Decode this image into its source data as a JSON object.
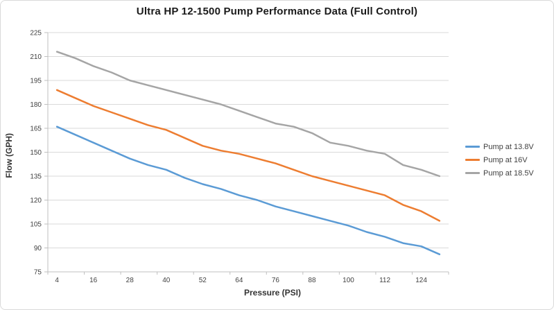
{
  "chart_data": {
    "type": "line",
    "title": "Ultra HP 12-1500 Pump Performance Data (Full Control)",
    "xlabel": "Pressure (PSI)",
    "ylabel": "Flow (GPH)",
    "x": [
      4,
      10,
      16,
      22,
      28,
      34,
      40,
      46,
      52,
      58,
      64,
      70,
      76,
      82,
      88,
      94,
      100,
      106,
      112,
      118,
      124,
      130
    ],
    "x_tick_labels": [
      4,
      16,
      28,
      40,
      52,
      64,
      76,
      88,
      100,
      112,
      124
    ],
    "y_tick_labels": [
      75,
      90,
      105,
      120,
      135,
      150,
      165,
      180,
      195,
      210,
      225
    ],
    "ylim": [
      75,
      225
    ],
    "xlim": [
      4,
      130
    ],
    "grid": "horizontal",
    "legend_position": "right",
    "series": [
      {
        "name": "Pump at 13.8V",
        "color": "#5B9BD5",
        "values": [
          166,
          161,
          156,
          151,
          146,
          142,
          139,
          134,
          130,
          127,
          123,
          120,
          116,
          113,
          110,
          107,
          104,
          100,
          97,
          93,
          91,
          86
        ]
      },
      {
        "name": "Pump at 16V",
        "color": "#ED7D31",
        "values": [
          189,
          184,
          179,
          175,
          171,
          167,
          164,
          159,
          154,
          151,
          149,
          146,
          143,
          139,
          135,
          132,
          129,
          126,
          123,
          117,
          113,
          107
        ]
      },
      {
        "name": "Pump at 18.5V",
        "color": "#A5A5A5",
        "values": [
          213,
          209,
          204,
          200,
          195,
          192,
          189,
          186,
          183,
          180,
          176,
          172,
          168,
          166,
          162,
          156,
          154,
          151,
          149,
          142,
          139,
          135
        ]
      }
    ],
    "gridline_color": "#D9D9D9",
    "axis_color": "#BFBFBF",
    "tick_label_color": "#404040",
    "title_color": "#1a1a1a"
  }
}
